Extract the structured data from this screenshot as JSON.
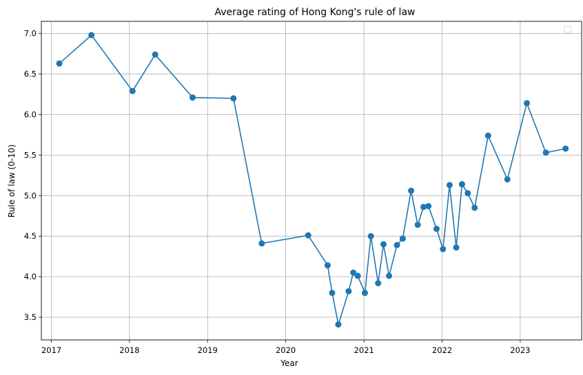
{
  "chart_data": {
    "type": "line",
    "title": "Average rating of Hong Kong's rule of law",
    "xlabel": "Year",
    "ylabel": "Rule of law (0-10)",
    "x_ticks": [
      "2017",
      "2018",
      "2019",
      "2020",
      "2021",
      "2022",
      "2023"
    ],
    "y_ticks": [
      "3.5",
      "4.0",
      "4.5",
      "5.0",
      "5.5",
      "6.0",
      "6.5",
      "7.0"
    ],
    "xlim": [
      "2016-11-15",
      "2023-10-15"
    ],
    "ylim": [
      3.22,
      7.15
    ],
    "grid": true,
    "legend": "top-right (empty)",
    "series": [
      {
        "marker": "circle",
        "color": "#1f77b4",
        "x": [
          "2017-02-07",
          "2017-07-07",
          "2018-01-15",
          "2018-05-01",
          "2018-10-23",
          "2019-05-02",
          "2019-09-11",
          "2020-04-15",
          "2020-07-15",
          "2020-08-05",
          "2020-09-03",
          "2020-10-21",
          "2020-11-12",
          "2020-12-03",
          "2021-01-05",
          "2021-02-02",
          "2021-03-08",
          "2021-04-02",
          "2021-04-28",
          "2021-06-04",
          "2021-07-01",
          "2021-08-09",
          "2021-09-09",
          "2021-10-06",
          "2021-10-29",
          "2021-12-06",
          "2022-01-05",
          "2022-02-05",
          "2022-03-08",
          "2022-04-04",
          "2022-05-01",
          "2022-06-02",
          "2022-08-04",
          "2022-11-02",
          "2023-02-01",
          "2023-05-01",
          "2023-08-01"
        ],
        "y": [
          6.63,
          6.98,
          6.29,
          6.74,
          6.21,
          6.2,
          4.41,
          4.51,
          4.14,
          3.8,
          3.41,
          3.82,
          4.05,
          4.01,
          3.8,
          4.5,
          3.92,
          4.4,
          4.01,
          4.39,
          4.47,
          5.06,
          4.64,
          4.86,
          4.87,
          4.59,
          4.34,
          5.13,
          4.36,
          5.14,
          5.03,
          4.85,
          5.74,
          5.2,
          6.14,
          5.53,
          5.58
        ]
      }
    ]
  }
}
